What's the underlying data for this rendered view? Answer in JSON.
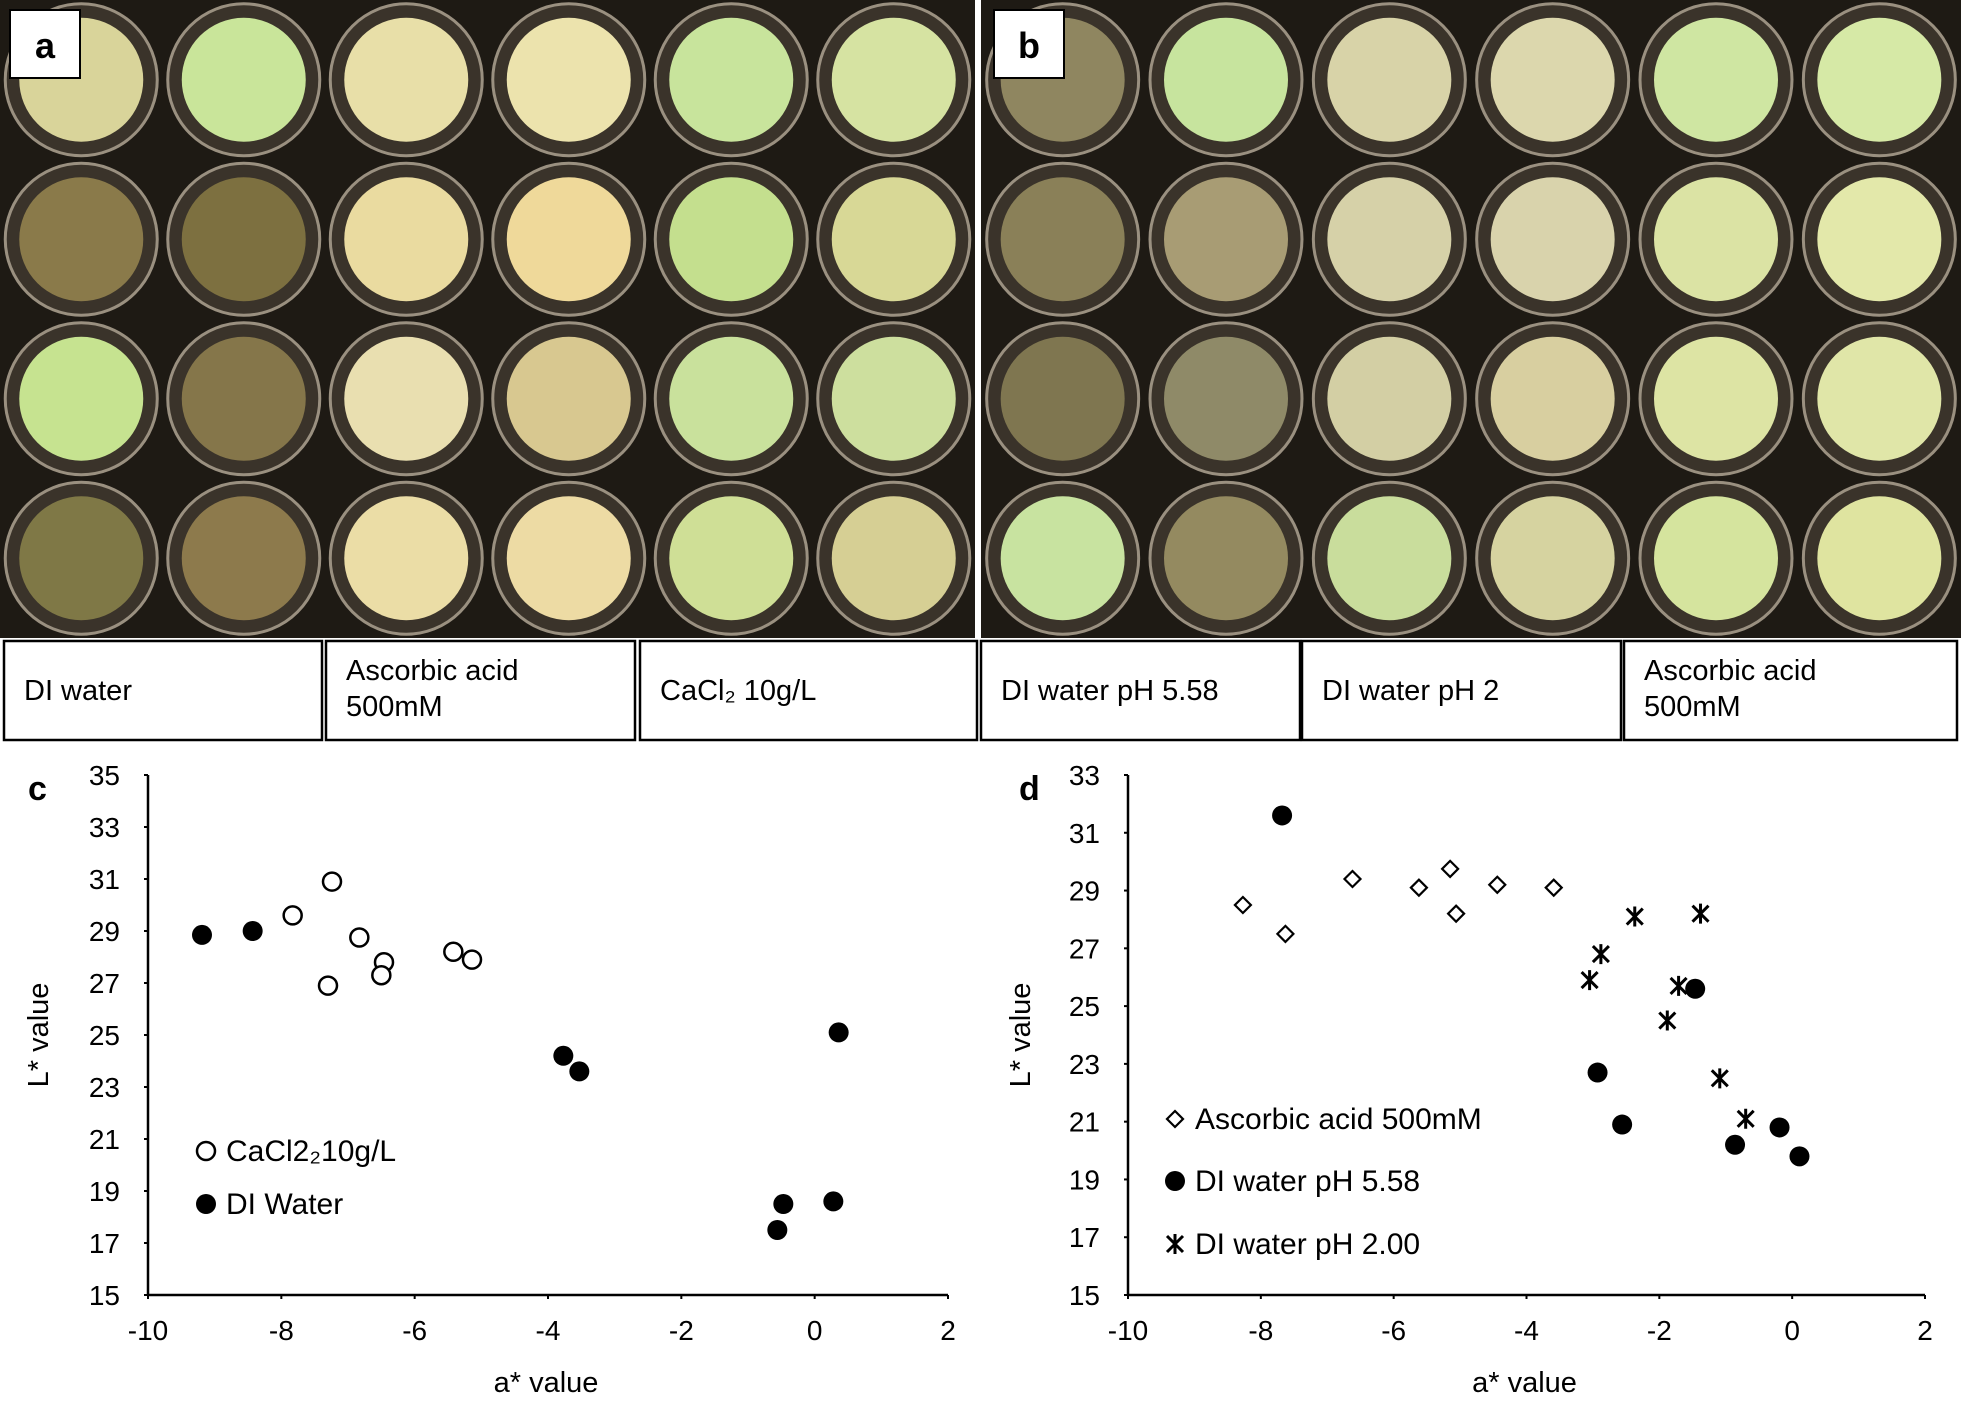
{
  "photos": [
    {
      "label": "a",
      "captions": [
        [
          "DI water"
        ],
        [
          "Ascorbic acid",
          "500mM"
        ],
        [
          "CaCl₂ 10g/L"
        ]
      ]
    },
    {
      "label": "b",
      "captions": [
        [
          "DI water pH 5.58"
        ],
        [
          "DI water pH 2"
        ],
        [
          "Ascorbic acid",
          "500mM"
        ]
      ]
    }
  ],
  "chart_data": [
    {
      "type": "scatter",
      "label": "c",
      "x_label": "a* value",
      "y_label": "L* value",
      "xlim": [
        -10,
        2
      ],
      "xticks": [
        -10,
        -8,
        -6,
        -4,
        -2,
        0,
        2
      ],
      "ylim": [
        15,
        35
      ],
      "yticks": [
        15,
        17,
        19,
        21,
        23,
        25,
        27,
        29,
        31,
        33,
        35
      ],
      "series": [
        {
          "name": "CaCl2₂10g/L",
          "marker": "circle-open",
          "color": "#000000",
          "x": [
            -7.24,
            -7.83,
            -6.83,
            -6.46,
            -6.5,
            -7.3,
            -5.42,
            -5.14
          ],
          "values": [
            30.9,
            29.6,
            28.75,
            27.8,
            27.3,
            26.9,
            28.2,
            27.9
          ]
        },
        {
          "name": "DI Water",
          "marker": "circle",
          "color": "#000000",
          "x": [
            -9.19,
            -8.43,
            -3.77,
            -3.53,
            0.36,
            0.28,
            -0.47,
            -0.56
          ],
          "values": [
            28.85,
            29.0,
            24.2,
            23.6,
            25.1,
            18.6,
            18.5,
            17.5
          ]
        }
      ]
    },
    {
      "type": "scatter",
      "label": "d",
      "x_label": "a* value",
      "y_label": "L* value",
      "xlim": [
        -10,
        2
      ],
      "xticks": [
        -10,
        -8,
        -6,
        -4,
        -2,
        0,
        2
      ],
      "ylim": [
        15,
        33
      ],
      "yticks": [
        15,
        17,
        19,
        21,
        23,
        25,
        27,
        29,
        31,
        33
      ],
      "series": [
        {
          "name": "Ascorbic acid 500mM",
          "marker": "diamond",
          "color": "#000000",
          "x": [
            -8.27,
            -7.63,
            -6.62,
            -5.62,
            -5.15,
            -5.06,
            -4.44,
            -3.59
          ],
          "values": [
            28.5,
            27.5,
            29.4,
            29.1,
            29.75,
            28.2,
            29.2,
            29.1
          ]
        },
        {
          "name": "DI water pH 5.58",
          "marker": "circle",
          "color": "#000000",
          "x": [
            -7.68,
            -1.46,
            -2.93,
            -2.56,
            -0.86,
            -0.19,
            0.11
          ],
          "values": [
            31.6,
            25.6,
            22.7,
            20.9,
            20.2,
            20.8,
            19.8
          ]
        },
        {
          "name": "DI water pH 2.00",
          "marker": "asterisk",
          "color": "#000000",
          "x": [
            -2.37,
            -1.38,
            -2.88,
            -3.05,
            -1.71,
            -1.88,
            -1.09,
            -0.7
          ],
          "values": [
            28.1,
            28.2,
            26.8,
            25.9,
            25.7,
            24.5,
            22.5,
            21.1
          ]
        }
      ]
    }
  ]
}
